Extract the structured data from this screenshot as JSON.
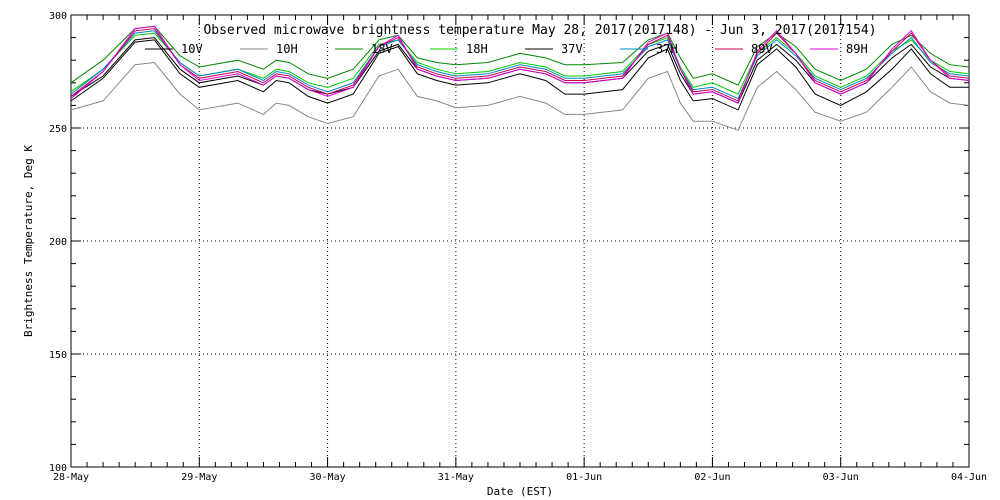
{
  "chart_data": {
    "type": "line",
    "title": "Observed microwave brightness temperature May 28, 2017(2017148) - Jun  3, 2017(2017154)",
    "xlabel": "Date (EST)",
    "ylabel": "Brightness Temperature, Deg K",
    "xlim": [
      0,
      7
    ],
    "ylim": [
      100,
      300
    ],
    "x_tick_labels": [
      "28-May",
      "29-May",
      "30-May",
      "31-May",
      "01-Jun",
      "02-Jun",
      "03-Jun",
      "04-Jun"
    ],
    "y_ticks": [
      100,
      150,
      200,
      250,
      300
    ],
    "grid": "dotted",
    "legend": "top-inside",
    "x": [
      0.0,
      0.25,
      0.5,
      0.65,
      0.85,
      1.0,
      1.3,
      1.5,
      1.6,
      1.7,
      1.85,
      2.0,
      2.2,
      2.4,
      2.55,
      2.7,
      2.85,
      3.0,
      3.25,
      3.5,
      3.7,
      3.85,
      4.0,
      4.3,
      4.5,
      4.65,
      4.75,
      4.85,
      5.0,
      5.2,
      5.35,
      5.5,
      5.65,
      5.8,
      6.0,
      6.2,
      6.4,
      6.55,
      6.7,
      6.85,
      7.0
    ],
    "series": [
      {
        "name": "10V",
        "color": "#000000",
        "values": [
          262,
          272,
          288,
          289,
          274,
          268,
          271,
          266,
          271,
          270,
          264,
          261,
          265,
          283,
          286,
          274,
          271,
          269,
          270,
          274,
          271,
          265,
          265,
          267,
          281,
          285,
          271,
          262,
          263,
          258,
          278,
          285,
          277,
          265,
          260,
          266,
          276,
          285,
          274,
          268,
          268
        ]
      },
      {
        "name": "10H",
        "color": "#888888",
        "values": [
          258,
          262,
          278,
          279,
          265,
          258,
          261,
          256,
          261,
          260,
          255,
          252,
          255,
          273,
          276,
          264,
          262,
          259,
          260,
          264,
          261,
          256,
          256,
          258,
          272,
          275,
          261,
          253,
          253,
          249,
          268,
          275,
          267,
          257,
          253,
          257,
          268,
          277,
          266,
          261,
          260
        ]
      },
      {
        "name": "18V",
        "color": "#008800",
        "values": [
          270,
          280,
          294,
          295,
          282,
          277,
          280,
          276,
          280,
          279,
          274,
          272,
          276,
          289,
          291,
          281,
          279,
          278,
          279,
          283,
          281,
          278,
          278,
          279,
          289,
          292,
          281,
          272,
          274,
          269,
          286,
          292,
          286,
          276,
          271,
          276,
          287,
          291,
          283,
          278,
          277
        ]
      },
      {
        "name": "18H",
        "color": "#00cc00",
        "values": [
          266,
          276,
          291,
          292,
          279,
          273,
          276,
          272,
          276,
          275,
          270,
          268,
          272,
          287,
          289,
          279,
          276,
          274,
          275,
          279,
          277,
          273,
          273,
          275,
          287,
          290,
          277,
          268,
          270,
          265,
          283,
          290,
          283,
          273,
          268,
          273,
          284,
          289,
          280,
          275,
          274
        ]
      },
      {
        "name": "37V",
        "color": "#000000",
        "values": [
          264,
          273,
          289,
          290,
          276,
          270,
          273,
          269,
          273,
          272,
          267,
          265,
          268,
          284,
          287,
          276,
          273,
          271,
          272,
          276,
          274,
          270,
          270,
          272,
          284,
          287,
          274,
          265,
          266,
          261,
          280,
          287,
          280,
          270,
          265,
          270,
          281,
          287,
          277,
          272,
          271
        ]
      },
      {
        "name": "37H",
        "color": "#0088cc",
        "values": [
          265,
          276,
          292,
          293,
          279,
          273,
          276,
          271,
          275,
          274,
          269,
          266,
          270,
          286,
          289,
          278,
          275,
          273,
          274,
          278,
          276,
          272,
          272,
          274,
          286,
          289,
          276,
          267,
          268,
          263,
          282,
          289,
          282,
          272,
          267,
          272,
          283,
          290,
          279,
          274,
          273
        ]
      },
      {
        "name": "89V",
        "color": "#cc0055",
        "values": [
          264,
          275,
          293,
          294,
          278,
          272,
          275,
          270,
          274,
          273,
          268,
          265,
          269,
          286,
          290,
          277,
          274,
          272,
          273,
          277,
          275,
          271,
          271,
          273,
          287,
          291,
          276,
          266,
          267,
          262,
          283,
          292,
          283,
          271,
          266,
          271,
          284,
          292,
          280,
          273,
          272
        ]
      },
      {
        "name": "89H",
        "color": "#dd00dd",
        "values": [
          263,
          275,
          294,
          295,
          278,
          271,
          274,
          269,
          273,
          272,
          267,
          264,
          268,
          286,
          291,
          276,
          273,
          271,
          272,
          276,
          274,
          270,
          270,
          272,
          288,
          292,
          276,
          265,
          266,
          261,
          284,
          293,
          283,
          270,
          265,
          270,
          285,
          293,
          280,
          272,
          271
        ]
      }
    ]
  }
}
